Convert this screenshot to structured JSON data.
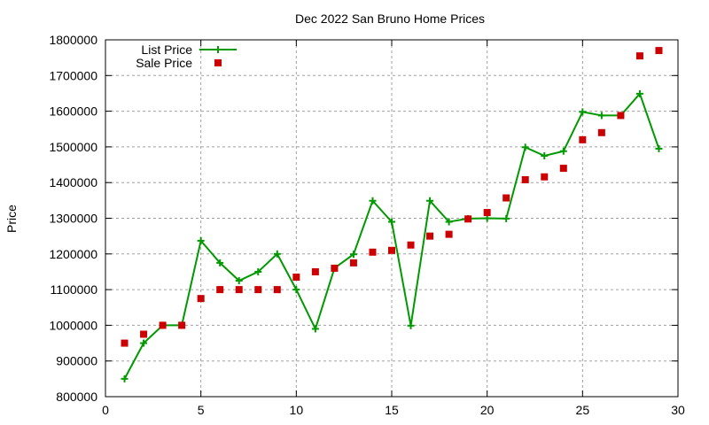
{
  "chart_data": {
    "type": "line",
    "title": "Dec 2022 San Bruno Home Prices",
    "xlabel": "",
    "ylabel": "Price",
    "xlim": [
      0,
      30
    ],
    "ylim": [
      800000,
      1800000
    ],
    "xticks": [
      0,
      5,
      10,
      15,
      20,
      25,
      30
    ],
    "yticks": [
      800000,
      900000,
      1000000,
      1100000,
      1200000,
      1300000,
      1400000,
      1500000,
      1600000,
      1700000,
      1800000
    ],
    "grid": true,
    "legend_position": "top-left",
    "x": [
      1,
      2,
      3,
      4,
      5,
      6,
      7,
      8,
      9,
      10,
      11,
      12,
      13,
      14,
      15,
      16,
      17,
      18,
      19,
      20,
      21,
      22,
      23,
      24,
      25,
      26,
      27,
      28,
      29
    ],
    "series": [
      {
        "name": "List Price",
        "style": "linespoints",
        "marker": "plus",
        "color": "#009900",
        "values": [
          850000,
          950000,
          1000000,
          1000000,
          1237000,
          1175000,
          1125000,
          1150000,
          1200000,
          1100000,
          990000,
          1160000,
          1199000,
          1349000,
          1290000,
          999000,
          1349000,
          1290000,
          1299000,
          1300000,
          1299000,
          1499000,
          1475000,
          1488000,
          1598000,
          1588000,
          1588000,
          1649000,
          1495000
        ]
      },
      {
        "name": "Sale Price",
        "style": "points",
        "marker": "square",
        "color": "#cc0000",
        "values": [
          950000,
          975000,
          1000000,
          1000000,
          1075000,
          1100000,
          1100000,
          1100000,
          1100000,
          1135000,
          1150000,
          1160000,
          1175000,
          1205000,
          1210000,
          1225000,
          1250000,
          1255000,
          1298000,
          1316000,
          1357000,
          1408000,
          1416000,
          1440000,
          1520000,
          1540000,
          1588000,
          1755000,
          1770000
        ]
      }
    ]
  }
}
